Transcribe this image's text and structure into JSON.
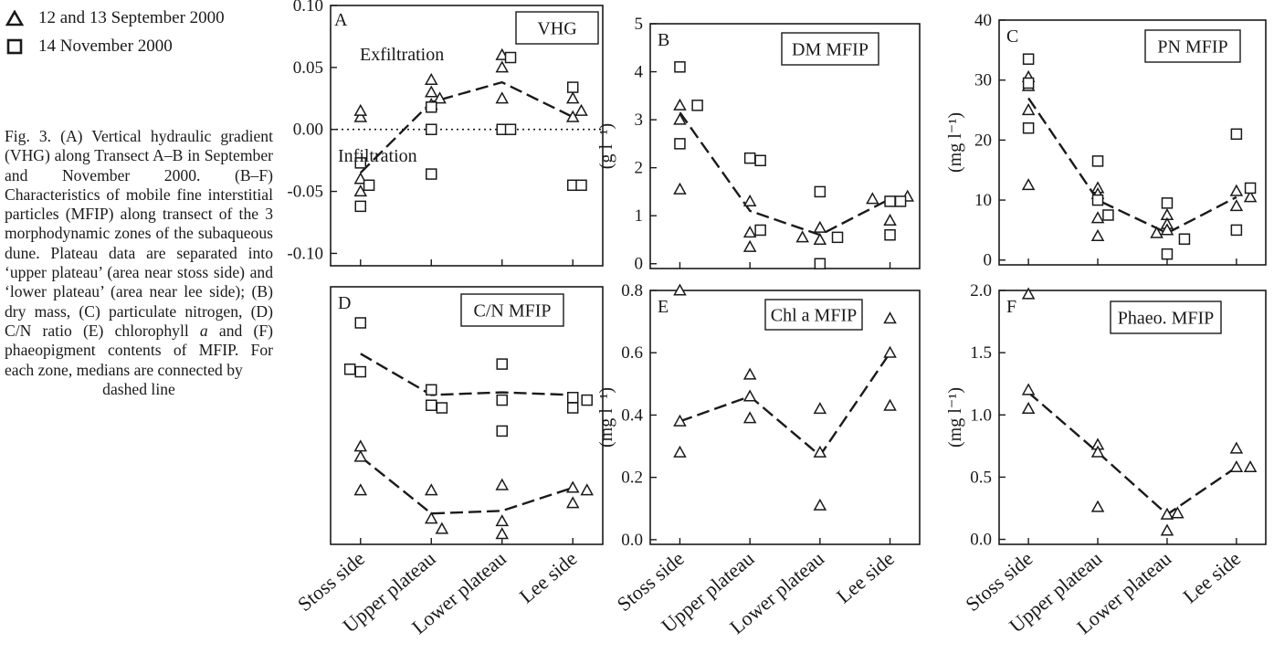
{
  "legend": {
    "triangle_label": "12 and 13 September 2000",
    "square_label": "14 November 2000"
  },
  "caption": {
    "main": "Fig. 3. (A) Vertical hydraulic gradient (VHG) along Transect A–B in September and November 2000. (B–F) Characteristics of mobile fine interstitial particles (MFIP) along transect of the 3 morphodynamic zones of the subaqueous dune. Plateau data are separated into ‘upper plateau’ (area near stoss side) and ‘lower plateau’ (area near lee side); (B) dry mass, (C) particulate nitrogen, (D) C/N ratio (E) chlorophyll",
    "italic": "a",
    "after_italic": " and (F) phaeopigment contents of MFIP. For each zone, medians are connected by",
    "last_line": "dashed line"
  },
  "colors": {
    "ink": "#1a1a1a",
    "background": "#ffffff"
  },
  "chart_data": [
    {
      "panel": "A",
      "type": "scatter",
      "box_label": "VHG",
      "annotations": [
        "Exfiltration",
        "Infiltration"
      ],
      "ylabel": "",
      "ylim": [
        -0.11,
        0.1
      ],
      "yticks": [
        -0.1,
        -0.05,
        0.0,
        0.05,
        0.1
      ],
      "ytick_labels": [
        "-0.10",
        "-0.05",
        "0.00",
        "0.05",
        "0.10"
      ],
      "reference_line": 0.0,
      "categories": [
        "Stoss side",
        "Upper plateau",
        "Lower plateau",
        "Lee side"
      ],
      "series": [
        {
          "name": "12 and 13 September 2000",
          "marker": "triangle",
          "points": [
            [
              0,
              0.01
            ],
            [
              0,
              0.015
            ],
            [
              0,
              -0.05
            ],
            [
              0,
              -0.04
            ],
            [
              1,
              0.04
            ],
            [
              1,
              0.03
            ],
            [
              1,
              0.02
            ],
            [
              1.12,
              0.025
            ],
            [
              2,
              0.06
            ],
            [
              2,
              0.05
            ],
            [
              2,
              0.025
            ],
            [
              3,
              0.025
            ],
            [
              3.12,
              0.015
            ],
            [
              3,
              0.01
            ]
          ]
        },
        {
          "name": "14 November 2000",
          "marker": "square",
          "points": [
            [
              0,
              -0.027
            ],
            [
              0.12,
              -0.045
            ],
            [
              0,
              -0.062
            ],
            [
              1,
              0.018
            ],
            [
              1,
              0.0
            ],
            [
              1,
              -0.036
            ],
            [
              2.12,
              0.058
            ],
            [
              2,
              0.0
            ],
            [
              2.12,
              0.0
            ],
            [
              3,
              0.034
            ],
            [
              3,
              -0.045
            ],
            [
              3.12,
              -0.045
            ]
          ]
        }
      ],
      "median_line": [
        [
          0,
          -0.035
        ],
        [
          1,
          0.022
        ],
        [
          2,
          0.038
        ],
        [
          3,
          0.01
        ]
      ]
    },
    {
      "panel": "B",
      "type": "scatter",
      "box_label": "DM MFIP",
      "ylabel": "(g l⁻¹)",
      "ylim": [
        -0.1,
        5.0
      ],
      "yticks": [
        0,
        1,
        2,
        3,
        4,
        5
      ],
      "ytick_labels": [
        "0",
        "1",
        "2",
        "3",
        "4",
        "5"
      ],
      "categories": [
        "Stoss side",
        "Upper plateau",
        "Lower plateau",
        "Lee side"
      ],
      "series": [
        {
          "name": "12 and 13 September 2000",
          "marker": "triangle",
          "points": [
            [
              0,
              3.3
            ],
            [
              0,
              3.0
            ],
            [
              0,
              1.55
            ],
            [
              1,
              1.3
            ],
            [
              1,
              0.65
            ],
            [
              1,
              0.35
            ],
            [
              1.75,
              0.55
            ],
            [
              2,
              0.75
            ],
            [
              2,
              0.5
            ],
            [
              2.75,
              1.35
            ],
            [
              3,
              0.9
            ],
            [
              3.25,
              1.4
            ]
          ]
        },
        {
          "name": "14 November 2000",
          "marker": "square",
          "points": [
            [
              0,
              4.1
            ],
            [
              0,
              2.5
            ],
            [
              0.25,
              3.3
            ],
            [
              1,
              2.2
            ],
            [
              1.15,
              2.15
            ],
            [
              1.15,
              0.7
            ],
            [
              2,
              1.5
            ],
            [
              2,
              0.0
            ],
            [
              2.25,
              0.55
            ],
            [
              3,
              1.3
            ],
            [
              3.15,
              1.3
            ],
            [
              3,
              0.6
            ]
          ]
        }
      ],
      "median_line": [
        [
          0,
          3.15
        ],
        [
          1,
          1.1
        ],
        [
          2,
          0.6
        ],
        [
          3,
          1.35
        ]
      ]
    },
    {
      "panel": "C",
      "type": "scatter",
      "box_label": "PN MFIP",
      "ylabel": "(mg l⁻¹)",
      "ylim": [
        -0.8,
        40
      ],
      "yticks": [
        0,
        10,
        20,
        30,
        40
      ],
      "ytick_labels": [
        "0",
        "10",
        "20",
        "30",
        "40"
      ],
      "categories": [
        "Stoss side",
        "Upper plateau",
        "Lower plateau",
        "Lee side"
      ],
      "series": [
        {
          "name": "12 and 13 September 2000",
          "marker": "triangle",
          "points": [
            [
              0,
              30.5
            ],
            [
              0,
              29
            ],
            [
              0,
              25
            ],
            [
              0,
              12.5
            ],
            [
              1,
              12
            ],
            [
              1,
              11
            ],
            [
              1,
              7
            ],
            [
              1,
              4
            ],
            [
              1.85,
              4.5
            ],
            [
              2,
              7.5
            ],
            [
              2,
              6
            ],
            [
              2,
              5
            ],
            [
              3,
              11.5
            ],
            [
              3,
              9
            ],
            [
              3.2,
              10.5
            ]
          ]
        },
        {
          "name": "14 November 2000",
          "marker": "square",
          "points": [
            [
              0,
              33.5
            ],
            [
              0,
              29.5
            ],
            [
              0,
              22
            ],
            [
              1,
              16.5
            ],
            [
              1,
              10
            ],
            [
              1.15,
              7.5
            ],
            [
              2,
              9.5
            ],
            [
              2,
              1
            ],
            [
              2.25,
              3.5
            ],
            [
              3,
              21
            ],
            [
              3,
              5
            ],
            [
              3.2,
              12
            ]
          ]
        }
      ],
      "median_line": [
        [
          0,
          27
        ],
        [
          1,
          10
        ],
        [
          2,
          4.5
        ],
        [
          3,
          10.5
        ]
      ]
    },
    {
      "panel": "D",
      "type": "scatter",
      "box_label": "C/N MFIP",
      "ylabel": "",
      "ylim": [
        0,
        1
      ],
      "yticks": [],
      "ytick_labels": [],
      "categories": [
        "Stoss side",
        "Upper plateau",
        "Lower plateau",
        "Lee side"
      ],
      "series": [
        {
          "name": "12 and 13 September 2000",
          "marker": "triangle",
          "points": [
            [
              0,
              0.38
            ],
            [
              0,
              0.34
            ],
            [
              0,
              0.21
            ],
            [
              1,
              0.21
            ],
            [
              1,
              0.1
            ],
            [
              1.15,
              0.06
            ],
            [
              2,
              0.23
            ],
            [
              2,
              0.09
            ],
            [
              2,
              0.04
            ],
            [
              3,
              0.22
            ],
            [
              3,
              0.16
            ],
            [
              3.2,
              0.21
            ]
          ]
        },
        {
          "name": "14 November 2000",
          "marker": "square",
          "points": [
            [
              -0.15,
              0.68
            ],
            [
              0,
              0.67
            ],
            [
              0,
              0.86
            ],
            [
              1,
              0.6
            ],
            [
              1,
              0.54
            ],
            [
              1.15,
              0.53
            ],
            [
              2,
              0.7
            ],
            [
              2,
              0.56
            ],
            [
              2,
              0.44
            ],
            [
              3,
              0.57
            ],
            [
              3,
              0.53
            ],
            [
              3.2,
              0.56
            ]
          ]
        }
      ],
      "median_lines": [
        [
          [
            0,
            0.74
          ],
          [
            1,
            0.58
          ],
          [
            2,
            0.59
          ],
          [
            3,
            0.58
          ]
        ],
        [
          [
            0,
            0.34
          ],
          [
            1,
            0.12
          ],
          [
            2,
            0.13
          ],
          [
            3,
            0.22
          ]
        ]
      ]
    },
    {
      "panel": "E",
      "type": "scatter",
      "box_label": "Chl a MFIP",
      "ylabel": "(mg l⁻¹)",
      "ylim": [
        -0.015,
        0.8
      ],
      "yticks": [
        0,
        0.2,
        0.4,
        0.6,
        0.8
      ],
      "ytick_labels": [
        "0.0",
        "0.2",
        "0.4",
        "0.6",
        "0.8"
      ],
      "categories": [
        "Stoss side",
        "Upper plateau",
        "Lower plateau",
        "Lee side"
      ],
      "series": [
        {
          "name": "12 and 13 September 2000",
          "marker": "triangle",
          "points": [
            [
              0,
              0.8
            ],
            [
              0,
              0.38
            ],
            [
              0,
              0.28
            ],
            [
              1,
              0.53
            ],
            [
              1,
              0.46
            ],
            [
              1,
              0.39
            ],
            [
              2,
              0.42
            ],
            [
              2,
              0.28
            ],
            [
              2,
              0.11
            ],
            [
              3,
              0.71
            ],
            [
              3,
              0.6
            ],
            [
              3,
              0.43
            ]
          ]
        }
      ],
      "median_line": [
        [
          0,
          0.38
        ],
        [
          1,
          0.46
        ],
        [
          2,
          0.27
        ],
        [
          3,
          0.6
        ]
      ]
    },
    {
      "panel": "F",
      "type": "scatter",
      "box_label": "Phaeo. MFIP",
      "ylabel": "(mg l⁻¹)",
      "ylim": [
        -0.04,
        2.0
      ],
      "yticks": [
        0,
        0.5,
        1.0,
        1.5,
        2.0
      ],
      "ytick_labels": [
        "0.0",
        "0.5",
        "1.0",
        "1.5",
        "2.0"
      ],
      "categories": [
        "Stoss side",
        "Upper plateau",
        "Lower plateau",
        "Lee side"
      ],
      "series": [
        {
          "name": "12 and 13 September 2000",
          "marker": "triangle",
          "points": [
            [
              0,
              1.97
            ],
            [
              0,
              1.2
            ],
            [
              0,
              1.05
            ],
            [
              1,
              0.76
            ],
            [
              1,
              0.7
            ],
            [
              1,
              0.26
            ],
            [
              2,
              0.2
            ],
            [
              2,
              0.07
            ],
            [
              2.15,
              0.21
            ],
            [
              3,
              0.73
            ],
            [
              3,
              0.58
            ],
            [
              3.2,
              0.58
            ]
          ]
        }
      ],
      "median_line": [
        [
          0,
          1.18
        ],
        [
          1,
          0.7
        ],
        [
          2,
          0.2
        ],
        [
          3,
          0.58
        ]
      ]
    }
  ]
}
